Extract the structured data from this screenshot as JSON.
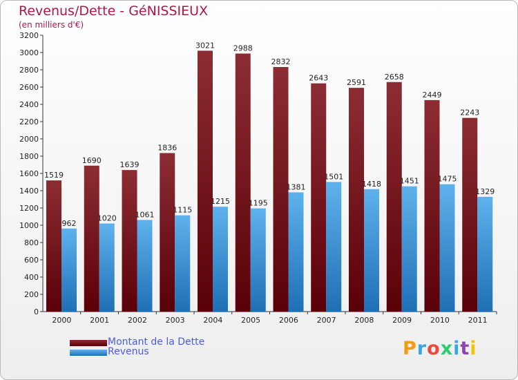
{
  "title": "Revenus/Dette - GéNISSIEUX",
  "subtitle": "(en milliers d'€)",
  "logo": {
    "text": "Proxiti",
    "colors": [
      "#f39c12",
      "#3aa6dd",
      "#e74c3c",
      "#2ecc71",
      "#3aa6dd",
      "#8e44ad",
      "#f1c40f"
    ]
  },
  "colors": {
    "dette_dark": "#5a0008",
    "dette_light": "#8c2d33",
    "revenus_dark": "#1f6fb5",
    "revenus_light": "#5eb2ec"
  },
  "chart_data": {
    "type": "bar",
    "categories": [
      "2000",
      "2001",
      "2002",
      "2003",
      "2004",
      "2005",
      "2006",
      "2007",
      "2008",
      "2009",
      "2010",
      "2011"
    ],
    "series": [
      {
        "name": "Montant de la Dette",
        "values": [
          1519,
          1690,
          1639,
          1836,
          3021,
          2988,
          2832,
          2643,
          2591,
          2658,
          2449,
          2243
        ]
      },
      {
        "name": "Revenus",
        "values": [
          962,
          1020,
          1061,
          1115,
          1215,
          1195,
          1381,
          1501,
          1418,
          1451,
          1475,
          1329
        ]
      }
    ],
    "ylim": [
      0,
      3200
    ],
    "yticks": [
      0,
      200,
      400,
      600,
      800,
      1000,
      1200,
      1400,
      1600,
      1800,
      2000,
      2200,
      2400,
      2600,
      2800,
      3000,
      3200
    ],
    "grid": false,
    "legend": "bottom-left"
  }
}
